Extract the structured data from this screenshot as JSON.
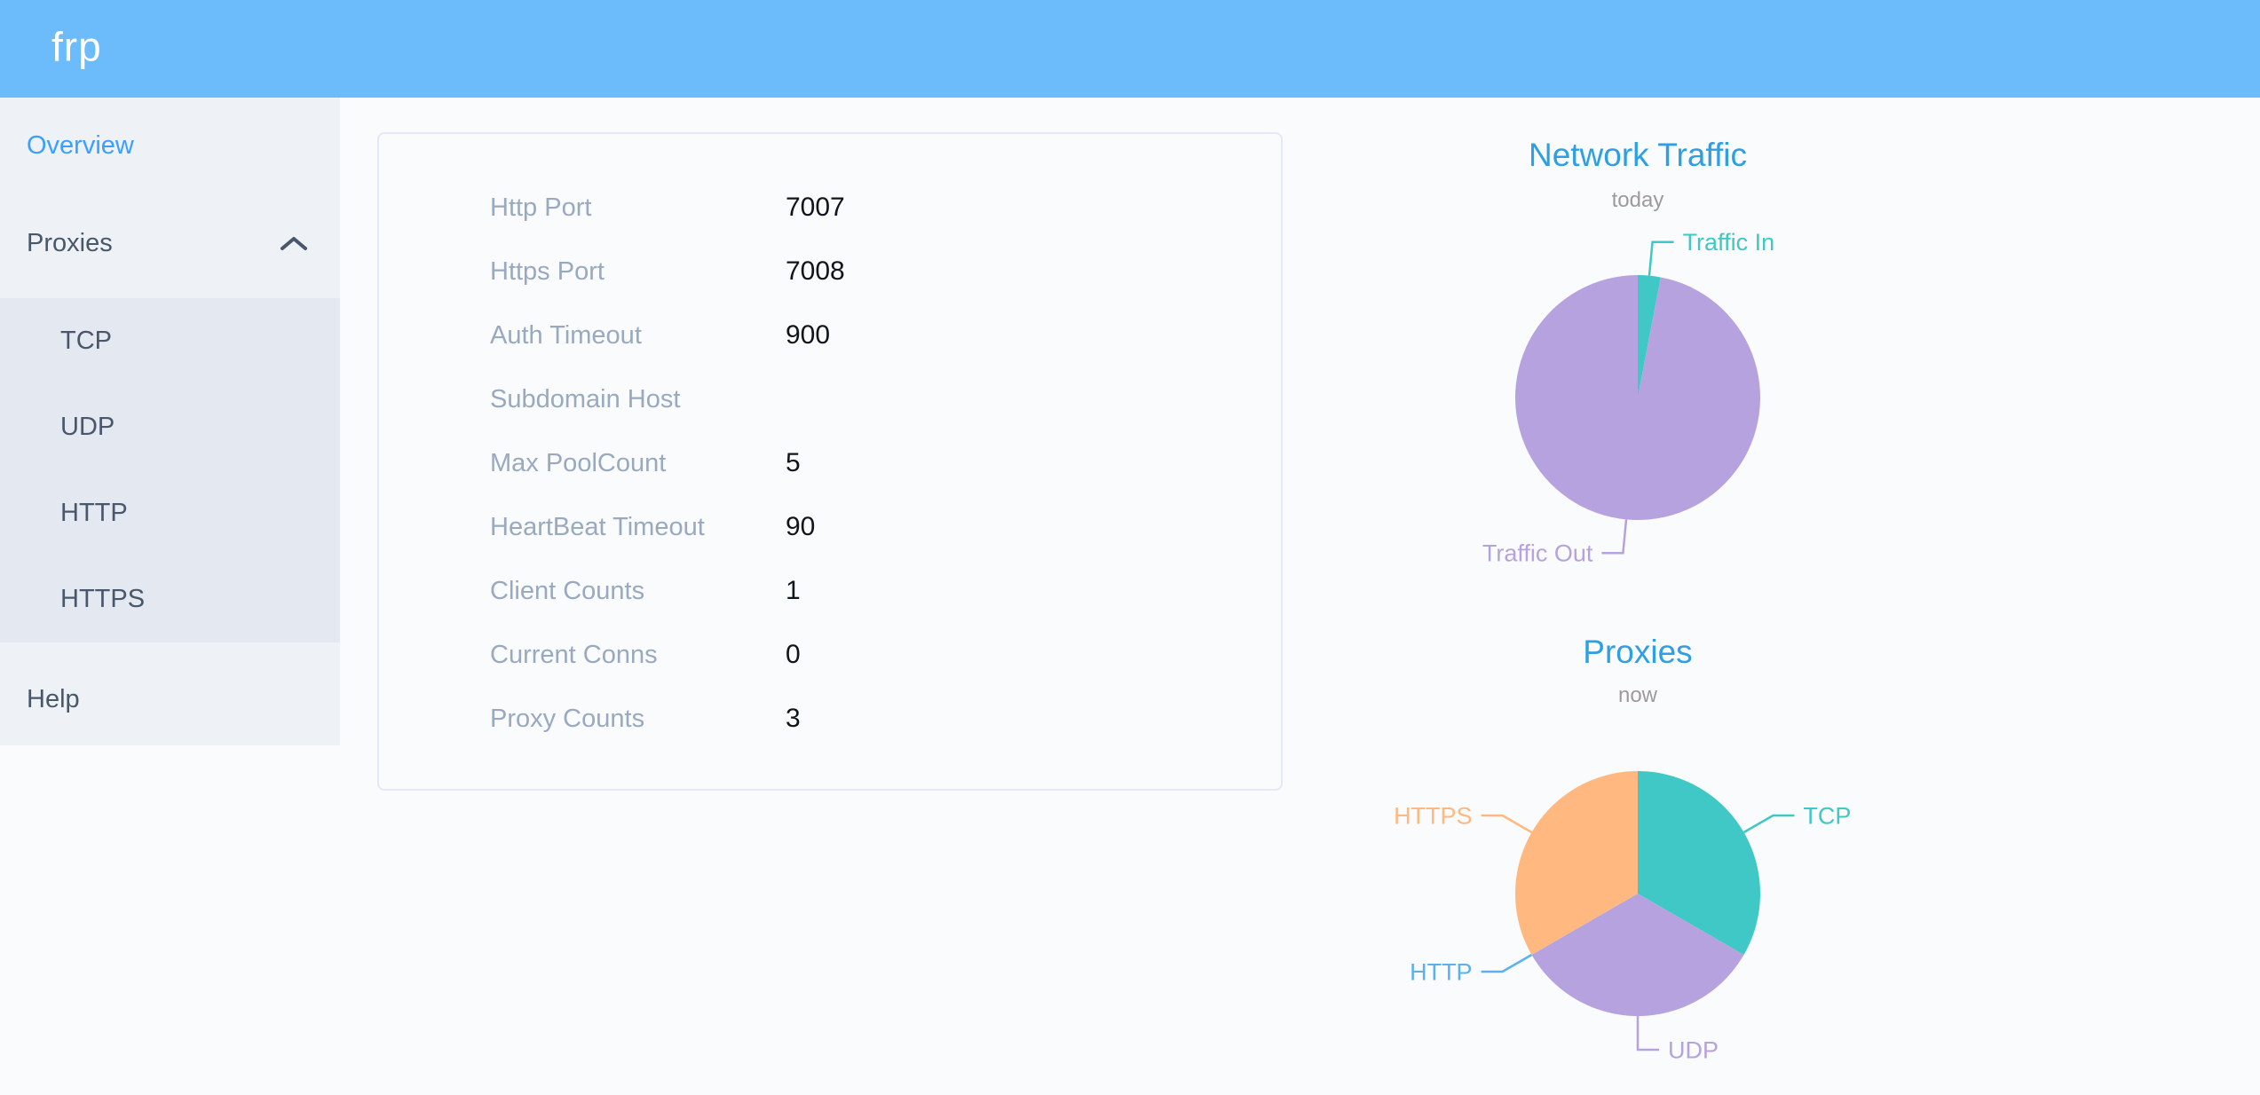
{
  "header": {
    "logo": "frp"
  },
  "sidebar": {
    "items": [
      {
        "label": "Overview",
        "active": true
      },
      {
        "label": "Proxies",
        "expanded": true,
        "children": [
          "TCP",
          "UDP",
          "HTTP",
          "HTTPS"
        ]
      },
      {
        "label": "Help"
      }
    ]
  },
  "overview": {
    "rows": [
      {
        "label": "Http Port",
        "value": "7007"
      },
      {
        "label": "Https Port",
        "value": "7008"
      },
      {
        "label": "Auth Timeout",
        "value": "900"
      },
      {
        "label": "Subdomain Host",
        "value": ""
      },
      {
        "label": "Max PoolCount",
        "value": "5"
      },
      {
        "label": "HeartBeat Timeout",
        "value": "90"
      },
      {
        "label": "Client Counts",
        "value": "1"
      },
      {
        "label": "Current Conns",
        "value": "0"
      },
      {
        "label": "Proxy Counts",
        "value": "3"
      }
    ]
  },
  "chart_data": [
    {
      "type": "pie",
      "title": "Network Traffic",
      "subtitle": "today",
      "legend_position": "callout-labels",
      "slices": [
        {
          "name": "Traffic In",
          "value": 3,
          "approx_percent": 3,
          "color": "#3fc8c5"
        },
        {
          "name": "Traffic Out",
          "value": 97,
          "approx_percent": 97,
          "color": "#b6a2de"
        }
      ]
    },
    {
      "type": "pie",
      "title": "Proxies",
      "subtitle": "now",
      "legend_position": "callout-labels",
      "slices": [
        {
          "name": "TCP",
          "value": 1,
          "approx_percent": 33.3,
          "color": "#3fc8c5"
        },
        {
          "name": "UDP",
          "value": 1,
          "approx_percent": 33.3,
          "color": "#b6a2de"
        },
        {
          "name": "HTTP",
          "value": 0,
          "approx_percent": 0,
          "color": "#5ab1ef"
        },
        {
          "name": "HTTPS",
          "value": 1,
          "approx_percent": 33.3,
          "color": "#ffb980"
        }
      ]
    }
  ],
  "colors": {
    "header_bg": "#6cbcfc",
    "sidebar_bg": "#eef1f6",
    "submenu_bg": "#e4e8f1",
    "menu_text": "#48576a",
    "active_menu_text": "#3aa0ff",
    "config_label_gray": "#99a9bf",
    "config_value_black": "#10151c",
    "chart_title_blue": "#2d9fe2",
    "chart_subtitle_gray": "#9b9b9b",
    "card_border": "#e3e9f7",
    "page_bg": "#fafbfc"
  }
}
